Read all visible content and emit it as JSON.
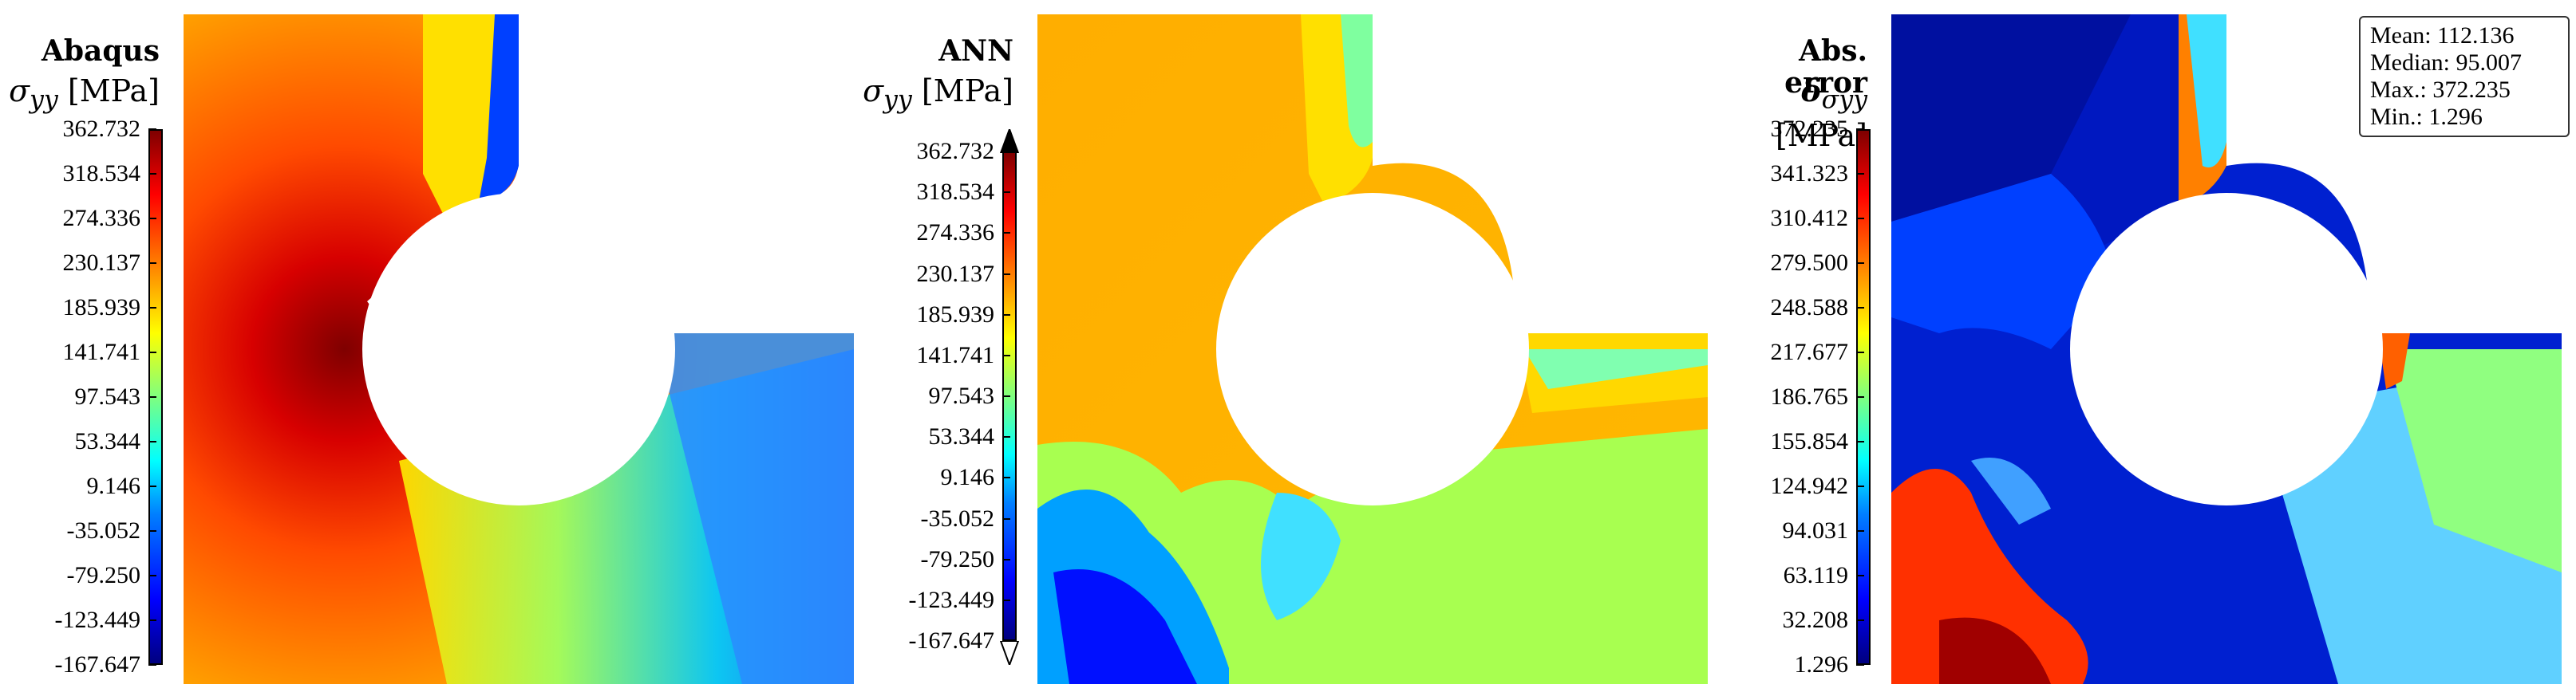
{
  "panels": [
    {
      "title": "Abaqus",
      "quantity": "σ",
      "subscript": "yy",
      "unit": "[MPa]",
      "ticks": [
        "362.732",
        "318.534",
        "274.336",
        "230.137",
        "185.939",
        "141.741",
        "97.543",
        "53.344",
        "9.146",
        "-35.052",
        "-79.250",
        "-123.449",
        "-167.647"
      ]
    },
    {
      "title": "ANN",
      "quantity": "σ",
      "subscript": "yy",
      "unit": "[MPa]",
      "ticks": [
        "362.732",
        "318.534",
        "274.336",
        "230.137",
        "185.939",
        "141.741",
        "97.543",
        "53.344",
        "9.146",
        "-35.052",
        "-79.250",
        "-123.449",
        "-167.647"
      ]
    },
    {
      "title": "Abs. error",
      "quantity": "δ",
      "subscript": "σyy",
      "unit": "[MPa]",
      "ticks": [
        "372.235",
        "341.323",
        "310.412",
        "279.500",
        "248.588",
        "217.677",
        "186.765",
        "155.854",
        "124.942",
        "94.031",
        "63.119",
        "32.208",
        "1.296"
      ]
    }
  ],
  "stats": {
    "mean": "Mean: 112.136",
    "median": "Median: 95.007",
    "max": "Max.: 372.235",
    "min": "Min.: 1.296"
  },
  "colors": {
    "dark_red": "#7f0000",
    "red": "#ff0000",
    "orange": "#ff9f00",
    "yellow": "#ffff00",
    "green": "#9fff5f",
    "cyan": "#00ffff",
    "blue": "#0000ff",
    "dark_blue": "#00007f"
  }
}
